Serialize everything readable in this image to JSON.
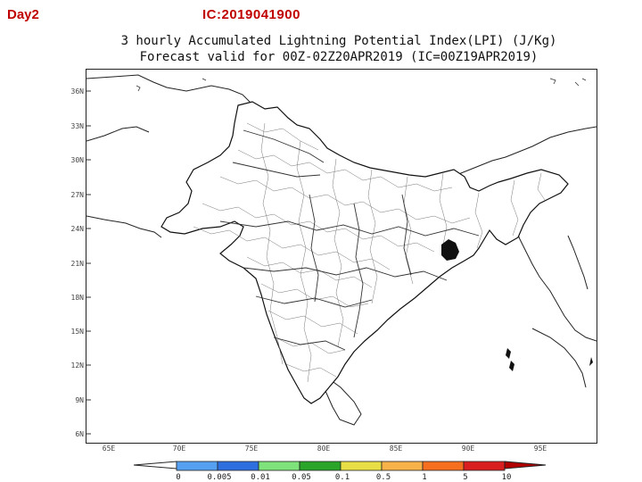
{
  "header": {
    "day_label": "Day2",
    "ic_label": "IC:2019041900"
  },
  "map": {
    "title_line1": "3 hourly Accumulated Lightning Potential Index(LPI) (J/Kg)",
    "title_line2": "Forecast valid for 00Z-02Z20APR2019 (IC=00Z19APR2019)",
    "lat_labels": [
      "36N",
      "33N",
      "30N",
      "27N",
      "24N",
      "21N",
      "18N",
      "15N",
      "12N",
      "9N",
      "6N"
    ],
    "lon_labels": [
      "65E",
      "70E",
      "75E",
      "80E",
      "85E",
      "90E",
      "95E"
    ],
    "extent": {
      "lat_min": 5,
      "lat_max": 38,
      "lon_min": 64,
      "lon_max": 97
    },
    "colorbar": {
      "labels": [
        "0",
        "0.005",
        "0.01",
        "0.05",
        "0.1",
        "0.5",
        "1",
        "5",
        "10"
      ],
      "colors": [
        "#56a0f2",
        "#2e6fe0",
        "#7ee37a",
        "#2aa52a",
        "#e8de45",
        "#f7b24a",
        "#f56f1e",
        "#d81e1e"
      ]
    }
  }
}
